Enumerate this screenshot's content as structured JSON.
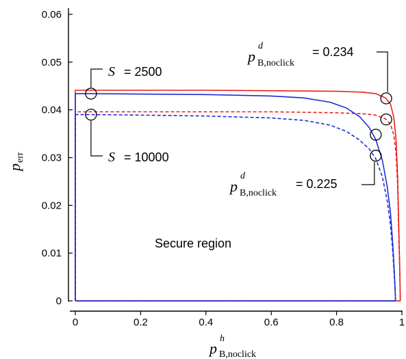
{
  "chart_data": {
    "type": "line",
    "xlabel": {
      "symbol": "p",
      "superscript": "h",
      "subscript": "B,noclick"
    },
    "ylabel": {
      "symbol": "p",
      "subscript": "err"
    },
    "xlim": [
      0,
      1
    ],
    "ylim": [
      0,
      0.06
    ],
    "x_ticks": [
      "0",
      "0.2",
      "0.4",
      "0.6",
      "0.8",
      "1"
    ],
    "y_ticks": [
      "0",
      "0.01",
      "0.02",
      "0.03",
      "0.04",
      "0.05",
      "0.06"
    ],
    "x_tick_values": [
      0,
      0.2,
      0.4,
      0.6,
      0.8,
      1.0
    ],
    "y_tick_values": [
      0,
      0.01,
      0.02,
      0.03,
      0.04,
      0.05,
      0.06
    ],
    "grid": false,
    "series": [
      {
        "color": "#e8201c",
        "dash": "solid",
        "x": [
          0,
          0.05,
          0.2,
          0.4,
          0.6,
          0.8,
          0.88,
          0.92,
          0.95,
          0.965,
          0.975,
          0.982,
          0.987,
          0.99,
          0.993,
          0.995,
          0.995
        ],
        "y": [
          0.0441,
          0.0441,
          0.0441,
          0.0441,
          0.044,
          0.0439,
          0.0437,
          0.0434,
          0.0425,
          0.0412,
          0.0385,
          0.034,
          0.026,
          0.017,
          0.008,
          0.001,
          0
        ]
      },
      {
        "color": "#e8201c",
        "dash": "dashed",
        "x": [
          0,
          0.05,
          0.2,
          0.4,
          0.6,
          0.8,
          0.88,
          0.92,
          0.95,
          0.965,
          0.975,
          0.982,
          0.987,
          0.99,
          0.993,
          0.995,
          0.995
        ],
        "y": [
          0.0396,
          0.0396,
          0.0396,
          0.0396,
          0.0396,
          0.0394,
          0.0392,
          0.0389,
          0.0381,
          0.037,
          0.0348,
          0.031,
          0.024,
          0.015,
          0.007,
          0.001,
          0
        ]
      },
      {
        "color": "#1f2bd6",
        "dash": "solid",
        "x": [
          0,
          0.05,
          0.2,
          0.4,
          0.6,
          0.7,
          0.78,
          0.83,
          0.87,
          0.9,
          0.92,
          0.94,
          0.955,
          0.965,
          0.972,
          0.977,
          0.98,
          0.98
        ],
        "y": [
          0.0434,
          0.0434,
          0.0433,
          0.0432,
          0.0429,
          0.0425,
          0.0416,
          0.0404,
          0.0386,
          0.0363,
          0.0338,
          0.0295,
          0.024,
          0.0185,
          0.012,
          0.006,
          0.001,
          0
        ]
      },
      {
        "color": "#1f2bd6",
        "dash": "dashed",
        "x": [
          0,
          0.05,
          0.2,
          0.4,
          0.6,
          0.7,
          0.78,
          0.83,
          0.87,
          0.9,
          0.92,
          0.94,
          0.955,
          0.965,
          0.972,
          0.977,
          0.98,
          0.98
        ],
        "y": [
          0.039,
          0.039,
          0.0389,
          0.0387,
          0.0383,
          0.0378,
          0.0368,
          0.0355,
          0.0337,
          0.0318,
          0.0298,
          0.026,
          0.021,
          0.016,
          0.0105,
          0.005,
          0.001,
          0
        ]
      }
    ],
    "markers": [
      {
        "x": 0.048,
        "y": 0.0434
      },
      {
        "x": 0.048,
        "y": 0.039
      },
      {
        "x": 0.952,
        "y": 0.0424
      },
      {
        "x": 0.952,
        "y": 0.038
      },
      {
        "x": 0.92,
        "y": 0.0348
      },
      {
        "x": 0.92,
        "y": 0.0304
      }
    ],
    "annotations": {
      "s2500": {
        "symbol": "S",
        "text": "= 2500"
      },
      "s10000": {
        "symbol": "S",
        "text": "= 10000"
      },
      "top_right": {
        "symbol": "p",
        "superscript": "d",
        "subscript": "B,noclick",
        "text": "= 0.234"
      },
      "bottom_right": {
        "symbol": "p",
        "superscript": "d",
        "subscript": "B,noclick",
        "text": "= 0.225"
      },
      "region": "Secure region"
    }
  }
}
